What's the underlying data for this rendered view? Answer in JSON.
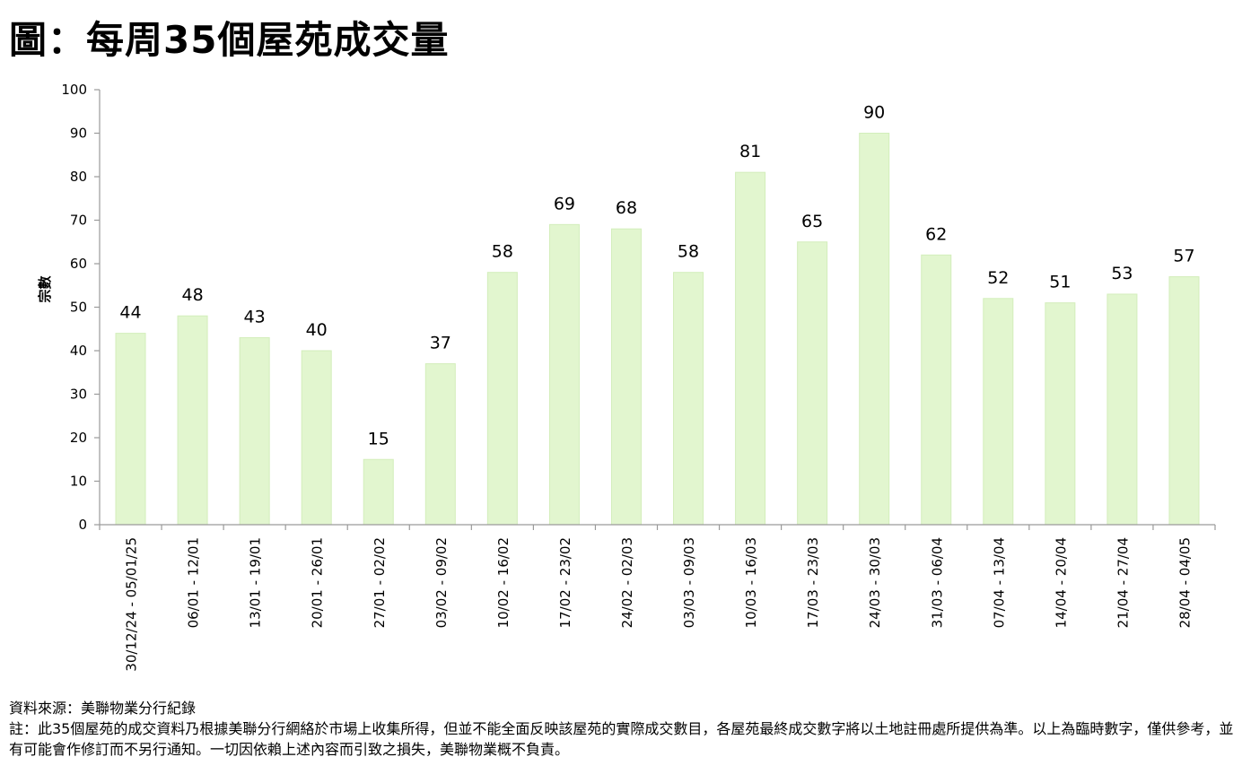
{
  "title": "圖：每周35個屋苑成交量",
  "chart_data": {
    "type": "bar",
    "ylabel": "宗數",
    "xlabel": "",
    "ylim": [
      0,
      100
    ],
    "yticks": [
      0,
      10,
      20,
      30,
      40,
      50,
      60,
      70,
      80,
      90,
      100
    ],
    "categories": [
      "30/12/24 - 05/01/25",
      "06/01 - 12/01",
      "13/01 - 19/01",
      "20/01 - 26/01",
      "27/01 - 02/02",
      "03/02 - 09/02",
      "10/02 - 16/02",
      "17/02 - 23/02",
      "24/02 - 02/03",
      "03/03 - 09/03",
      "10/03 - 16/03",
      "17/03 - 23/03",
      "24/03 - 30/03",
      "31/03 - 06/04",
      "07/04 - 13/04",
      "14/04 - 20/04",
      "21/04 - 27/04",
      "28/04 - 04/05"
    ],
    "values": [
      44,
      48,
      43,
      40,
      15,
      37,
      58,
      69,
      68,
      58,
      81,
      65,
      90,
      62,
      52,
      51,
      53,
      57
    ],
    "data_labels": true,
    "grid": false,
    "bar_color": "#e2f6cf",
    "bar_edge_color": "#d3eebb"
  },
  "footer": {
    "source": "資料來源：美聯物業分行紀錄",
    "note": "註：此35個屋苑的成交資料乃根據美聯分行網絡於市場上收集所得，但並不能全面反映該屋苑的實際成交數目，各屋苑最終成交數字將以土地註冊處所提供為準。以上為臨時數字，僅供參考，並有可能會作修訂而不另行通知。一切因依賴上述內容而引致之損失，美聯物業概不負責。"
  }
}
